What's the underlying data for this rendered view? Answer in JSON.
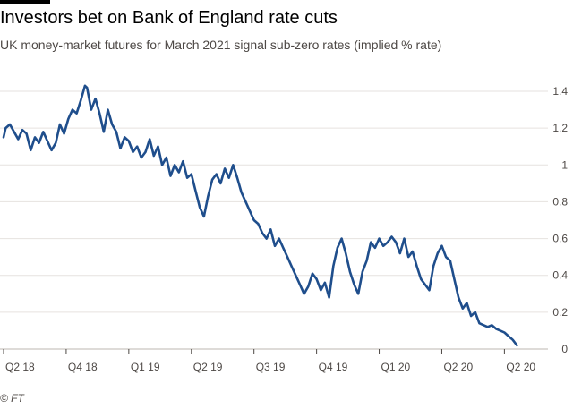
{
  "title": "Investors bet on Bank of England rate cuts",
  "subtitle": "UK money-market futures for March 2021 signal sub-zero rates (implied % rate)",
  "source": "© FT",
  "colors": {
    "line": "#1f4e8c",
    "grid": "#e6e2df",
    "axis": "#4d4845",
    "topbar": "#000000"
  },
  "chart_data": {
    "type": "line",
    "title": "Investors bet on Bank of England rate cuts",
    "subtitle": "UK money-market futures for March 2021 signal sub-zero rates (implied % rate)",
    "ylabel": "implied % rate",
    "ylim": [
      0,
      1.4
    ],
    "yticks": [
      0,
      0.2,
      0.4,
      0.6,
      0.8,
      1,
      1.2,
      1.4
    ],
    "ytick_labels": [
      "0",
      "0.2",
      "0.4",
      "0.6",
      "0.8",
      "1",
      "1.2",
      "1.4"
    ],
    "xlim": [
      0,
      26
    ],
    "xticks": [
      0,
      3,
      6,
      9,
      12,
      15,
      18,
      21,
      24
    ],
    "xtick_labels": [
      "Q2 18",
      "Q4 18",
      "Q1 19",
      "Q2 19",
      "Q3 19",
      "Q4 19",
      "Q1 20",
      "Q2 20",
      "Q2 20"
    ],
    "grid": true,
    "legend": "none",
    "series": [
      {
        "name": "",
        "x": [
          0,
          0.1,
          0.3,
          0.5,
          0.7,
          0.9,
          1.1,
          1.3,
          1.5,
          1.7,
          1.9,
          2.1,
          2.3,
          2.5,
          2.7,
          2.9,
          3.1,
          3.3,
          3.5,
          3.7,
          3.9,
          4.0,
          4.2,
          4.4,
          4.6,
          4.8,
          5.0,
          5.2,
          5.4,
          5.6,
          5.8,
          6.0,
          6.2,
          6.4,
          6.6,
          6.8,
          7.0,
          7.2,
          7.4,
          7.6,
          7.8,
          8.0,
          8.2,
          8.4,
          8.6,
          8.8,
          9.0,
          9.2,
          9.4,
          9.6,
          9.8,
          10.0,
          10.2,
          10.4,
          10.6,
          10.8,
          11.0,
          11.2,
          11.4,
          11.6,
          11.8,
          12.0,
          12.2,
          12.4,
          12.6,
          12.8,
          13.0,
          13.2,
          13.4,
          13.6,
          13.8,
          14.0,
          14.2,
          14.4,
          14.6,
          14.8,
          15.0,
          15.2,
          15.4,
          15.6,
          15.8,
          16.0,
          16.2,
          16.4,
          16.6,
          16.8,
          17.0,
          17.2,
          17.4,
          17.6,
          17.8,
          18.0,
          18.2,
          18.4,
          18.6,
          18.8,
          19.0,
          19.2,
          19.4,
          19.6,
          19.8,
          20.0,
          20.2,
          20.4,
          20.6,
          20.8,
          21.0,
          21.2,
          21.4,
          21.6,
          21.8,
          22.0,
          22.2,
          22.4,
          22.6,
          22.8,
          23.0,
          23.2,
          23.4,
          23.6,
          23.8,
          24.0,
          24.2,
          24.4,
          24.6
        ],
        "values": [
          1.15,
          1.2,
          1.22,
          1.18,
          1.14,
          1.19,
          1.17,
          1.08,
          1.15,
          1.12,
          1.18,
          1.13,
          1.08,
          1.12,
          1.22,
          1.17,
          1.25,
          1.3,
          1.28,
          1.35,
          1.43,
          1.42,
          1.3,
          1.36,
          1.28,
          1.18,
          1.3,
          1.22,
          1.18,
          1.09,
          1.15,
          1.13,
          1.07,
          1.1,
          1.04,
          1.07,
          1.14,
          1.05,
          1.1,
          1.0,
          1.04,
          0.94,
          1.0,
          0.96,
          1.02,
          0.93,
          0.95,
          0.86,
          0.77,
          0.72,
          0.83,
          0.92,
          0.95,
          0.9,
          0.98,
          0.93,
          1.0,
          0.93,
          0.85,
          0.8,
          0.75,
          0.7,
          0.68,
          0.63,
          0.6,
          0.65,
          0.56,
          0.6,
          0.55,
          0.5,
          0.45,
          0.4,
          0.35,
          0.3,
          0.34,
          0.41,
          0.38,
          0.32,
          0.36,
          0.28,
          0.45,
          0.55,
          0.6,
          0.52,
          0.42,
          0.35,
          0.3,
          0.42,
          0.48,
          0.58,
          0.55,
          0.6,
          0.56,
          0.58,
          0.61,
          0.58,
          0.52,
          0.6,
          0.5,
          0.53,
          0.45,
          0.38,
          0.35,
          0.32,
          0.45,
          0.52,
          0.56,
          0.5,
          0.48,
          0.38,
          0.28,
          0.22,
          0.25,
          0.18,
          0.2,
          0.14,
          0.13,
          0.12,
          0.13,
          0.11,
          0.1,
          0.09,
          0.07,
          0.05,
          0.02
        ]
      }
    ]
  }
}
